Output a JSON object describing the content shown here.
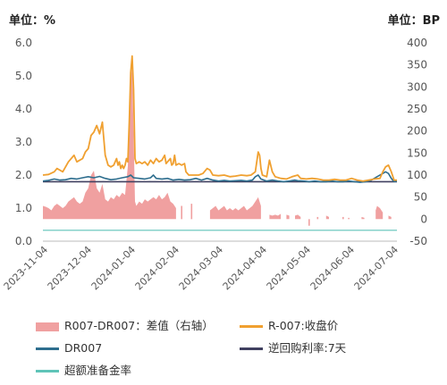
{
  "chart_data": {
    "type": "line",
    "left_unit": "单位：%",
    "right_unit": "单位：BP",
    "y_left": {
      "min": 0,
      "max": 6,
      "ticks": [
        "0.0",
        "1.0",
        "2.0",
        "3.0",
        "4.0",
        "5.0",
        "6.0"
      ]
    },
    "y_right": {
      "min": -50,
      "max": 400,
      "ticks": [
        "-50",
        "0",
        "50",
        "100",
        "150",
        "200",
        "250",
        "300",
        "350",
        "400"
      ]
    },
    "x_ticks": [
      "2023-11-04",
      "2023-12-04",
      "2024-01-04",
      "2024-02-04",
      "2024-03-04",
      "2024-04-04",
      "2024-05-04",
      "2024-06-04",
      "2024-07-04"
    ],
    "colors": {
      "spread": "#f0a0a0",
      "r007": "#f0a030",
      "dr007": "#2e6e8e",
      "repo": "#404060",
      "rrr": "#5fc4b8"
    },
    "legend": [
      {
        "key": "spread",
        "label": "R007-DR007：差值（右轴）",
        "kind": "box"
      },
      {
        "key": "r007",
        "label": "R-007:收盘价",
        "kind": "line"
      },
      {
        "key": "dr007",
        "label": "DR007",
        "kind": "line"
      },
      {
        "key": "repo",
        "label": "逆回购利率:7天",
        "kind": "line"
      },
      {
        "key": "rrr",
        "label": "超额准备金率",
        "kind": "line"
      }
    ],
    "series": {
      "r007": [
        [
          0,
          2.0
        ],
        [
          4,
          2.02
        ],
        [
          8,
          2.1
        ],
        [
          10,
          2.2
        ],
        [
          14,
          2.1
        ],
        [
          18,
          2.4
        ],
        [
          22,
          2.6
        ],
        [
          24,
          2.4
        ],
        [
          28,
          2.5
        ],
        [
          30,
          2.7
        ],
        [
          32,
          2.8
        ],
        [
          34,
          3.2
        ],
        [
          36,
          3.3
        ],
        [
          38,
          3.5
        ],
        [
          40,
          3.25
        ],
        [
          42,
          3.6
        ],
        [
          44,
          2.6
        ],
        [
          46,
          2.3
        ],
        [
          48,
          2.25
        ],
        [
          50,
          2.3
        ],
        [
          52,
          2.5
        ],
        [
          53,
          2.3
        ],
        [
          54,
          2.4
        ],
        [
          55,
          2.2
        ],
        [
          56,
          2.3
        ],
        [
          57,
          2.2
        ],
        [
          58,
          2.3
        ],
        [
          59,
          2.5
        ],
        [
          60,
          2.4
        ],
        [
          61,
          3.6
        ],
        [
          62,
          5.1
        ],
        [
          63,
          5.6
        ],
        [
          64,
          4.6
        ],
        [
          65,
          2.5
        ],
        [
          66,
          2.35
        ],
        [
          68,
          2.4
        ],
        [
          70,
          2.35
        ],
        [
          72,
          2.4
        ],
        [
          74,
          2.3
        ],
        [
          76,
          2.45
        ],
        [
          78,
          2.35
        ],
        [
          80,
          2.5
        ],
        [
          82,
          2.4
        ],
        [
          84,
          2.45
        ],
        [
          86,
          2.6
        ],
        [
          87,
          2.35
        ],
        [
          88,
          2.4
        ],
        [
          90,
          2.5
        ],
        [
          91,
          2.3
        ],
        [
          92,
          2.35
        ],
        [
          93,
          2.6
        ],
        [
          94,
          2.3
        ],
        [
          96,
          2.35
        ],
        [
          98,
          2.3
        ],
        [
          100,
          2.35
        ],
        [
          101,
          2.1
        ],
        [
          103,
          2.0
        ],
        [
          107,
          2.0
        ],
        [
          110,
          2.0
        ],
        [
          113,
          2.05
        ],
        [
          116,
          2.2
        ],
        [
          118,
          2.15
        ],
        [
          120,
          2.0
        ],
        [
          124,
          1.98
        ],
        [
          128,
          2.0
        ],
        [
          132,
          1.95
        ],
        [
          136,
          1.97
        ],
        [
          140,
          2.0
        ],
        [
          144,
          1.98
        ],
        [
          147,
          2.0
        ],
        [
          150,
          2.1
        ],
        [
          152,
          2.7
        ],
        [
          153,
          2.6
        ],
        [
          154,
          2.2
        ],
        [
          155,
          2.0
        ],
        [
          158,
          1.95
        ],
        [
          160,
          2.45
        ],
        [
          162,
          2.1
        ],
        [
          164,
          1.95
        ],
        [
          168,
          1.9
        ],
        [
          172,
          1.88
        ],
        [
          176,
          1.95
        ],
        [
          180,
          2.0
        ],
        [
          182,
          1.9
        ],
        [
          186,
          1.88
        ],
        [
          190,
          1.9
        ],
        [
          194,
          1.88
        ],
        [
          198,
          1.85
        ],
        [
          202,
          1.85
        ],
        [
          206,
          1.87
        ],
        [
          210,
          1.85
        ],
        [
          214,
          1.85
        ],
        [
          218,
          1.9
        ],
        [
          222,
          1.85
        ],
        [
          226,
          1.82
        ],
        [
          230,
          1.85
        ],
        [
          234,
          1.88
        ],
        [
          238,
          1.9
        ],
        [
          240,
          2.1
        ],
        [
          242,
          2.25
        ],
        [
          244,
          2.3
        ],
        [
          246,
          2.1
        ],
        [
          248,
          1.85
        ],
        [
          250,
          1.85
        ]
      ],
      "dr007": [
        [
          0,
          1.82
        ],
        [
          4,
          1.84
        ],
        [
          8,
          1.88
        ],
        [
          12,
          1.85
        ],
        [
          16,
          1.86
        ],
        [
          20,
          1.9
        ],
        [
          24,
          1.88
        ],
        [
          28,
          1.92
        ],
        [
          32,
          1.95
        ],
        [
          36,
          1.92
        ],
        [
          40,
          1.96
        ],
        [
          44,
          1.9
        ],
        [
          48,
          1.86
        ],
        [
          52,
          1.88
        ],
        [
          56,
          1.92
        ],
        [
          60,
          1.95
        ],
        [
          62,
          2.0
        ],
        [
          64,
          1.92
        ],
        [
          68,
          1.9
        ],
        [
          72,
          1.88
        ],
        [
          76,
          1.92
        ],
        [
          78,
          2.0
        ],
        [
          80,
          1.9
        ],
        [
          84,
          1.88
        ],
        [
          88,
          1.9
        ],
        [
          92,
          1.85
        ],
        [
          96,
          1.87
        ],
        [
          100,
          1.85
        ],
        [
          104,
          1.86
        ],
        [
          108,
          1.9
        ],
        [
          112,
          1.85
        ],
        [
          116,
          1.9
        ],
        [
          120,
          1.85
        ],
        [
          124,
          1.82
        ],
        [
          128,
          1.84
        ],
        [
          132,
          1.82
        ],
        [
          136,
          1.83
        ],
        [
          140,
          1.84
        ],
        [
          144,
          1.82
        ],
        [
          148,
          1.85
        ],
        [
          150,
          1.95
        ],
        [
          152,
          2.0
        ],
        [
          154,
          1.88
        ],
        [
          158,
          1.82
        ],
        [
          162,
          1.85
        ],
        [
          166,
          1.82
        ],
        [
          170,
          1.8
        ],
        [
          174,
          1.82
        ],
        [
          178,
          1.85
        ],
        [
          180,
          1.83
        ],
        [
          184,
          1.82
        ],
        [
          188,
          1.8
        ],
        [
          192,
          1.82
        ],
        [
          196,
          1.8
        ],
        [
          200,
          1.8
        ],
        [
          204,
          1.82
        ],
        [
          208,
          1.8
        ],
        [
          212,
          1.8
        ],
        [
          216,
          1.82
        ],
        [
          220,
          1.8
        ],
        [
          224,
          1.78
        ],
        [
          228,
          1.8
        ],
        [
          232,
          1.85
        ],
        [
          236,
          1.95
        ],
        [
          240,
          2.05
        ],
        [
          242,
          2.1
        ],
        [
          244,
          2.05
        ],
        [
          246,
          1.9
        ],
        [
          248,
          1.8
        ],
        [
          250,
          1.82
        ]
      ],
      "repo": [
        [
          0,
          1.8
        ],
        [
          250,
          1.8
        ]
      ],
      "rrr": [
        [
          0,
          0.33
        ],
        [
          250,
          0.33
        ]
      ],
      "spread": [
        [
          0,
          30
        ],
        [
          2,
          28
        ],
        [
          4,
          25
        ],
        [
          6,
          20
        ],
        [
          8,
          30
        ],
        [
          10,
          35
        ],
        [
          12,
          30
        ],
        [
          14,
          25
        ],
        [
          16,
          30
        ],
        [
          18,
          40
        ],
        [
          20,
          45
        ],
        [
          22,
          50
        ],
        [
          24,
          40
        ],
        [
          26,
          35
        ],
        [
          28,
          40
        ],
        [
          30,
          60
        ],
        [
          32,
          70
        ],
        [
          34,
          100
        ],
        [
          36,
          110
        ],
        [
          38,
          70
        ],
        [
          40,
          60
        ],
        [
          42,
          80
        ],
        [
          44,
          45
        ],
        [
          46,
          40
        ],
        [
          48,
          50
        ],
        [
          50,
          45
        ],
        [
          52,
          55
        ],
        [
          54,
          50
        ],
        [
          56,
          60
        ],
        [
          58,
          55
        ],
        [
          60,
          120
        ],
        [
          61,
          240
        ],
        [
          62,
          310
        ],
        [
          63,
          350
        ],
        [
          64,
          200
        ],
        [
          65,
          40
        ],
        [
          66,
          30
        ],
        [
          68,
          40
        ],
        [
          70,
          35
        ],
        [
          72,
          45
        ],
        [
          74,
          40
        ],
        [
          76,
          45
        ],
        [
          78,
          50
        ],
        [
          80,
          45
        ],
        [
          82,
          55
        ],
        [
          84,
          45
        ],
        [
          86,
          50
        ],
        [
          88,
          60
        ],
        [
          90,
          40
        ],
        [
          92,
          35
        ],
        [
          94,
          25
        ],
        [
          95,
          null
        ],
        [
          98,
          30
        ],
        [
          99,
          null
        ],
        [
          104,
          null
        ],
        [
          105,
          35
        ],
        [
          106,
          null
        ],
        [
          118,
          20
        ],
        [
          120,
          25
        ],
        [
          122,
          30
        ],
        [
          124,
          20
        ],
        [
          126,
          25
        ],
        [
          128,
          30
        ],
        [
          130,
          20
        ],
        [
          132,
          25
        ],
        [
          134,
          20
        ],
        [
          136,
          25
        ],
        [
          138,
          20
        ],
        [
          140,
          25
        ],
        [
          142,
          30
        ],
        [
          144,
          20
        ],
        [
          146,
          25
        ],
        [
          148,
          30
        ],
        [
          150,
          40
        ],
        [
          152,
          50
        ],
        [
          154,
          30
        ],
        [
          155,
          null
        ],
        [
          160,
          10
        ],
        [
          162,
          8
        ],
        [
          164,
          10
        ],
        [
          166,
          8
        ],
        [
          168,
          12
        ],
        [
          170,
          null
        ],
        [
          172,
          10
        ],
        [
          174,
          8
        ],
        [
          175,
          null
        ],
        [
          178,
          8
        ],
        [
          180,
          10
        ],
        [
          182,
          5
        ],
        [
          183,
          null
        ],
        [
          188,
          -15
        ],
        [
          189,
          null
        ],
        [
          194,
          5
        ],
        [
          195,
          null
        ],
        [
          200,
          8
        ],
        [
          202,
          5
        ],
        [
          203,
          null
        ],
        [
          212,
          5
        ],
        [
          213,
          null
        ],
        [
          216,
          3
        ],
        [
          217,
          null
        ],
        [
          225,
          5
        ],
        [
          227,
          3
        ],
        [
          228,
          null
        ],
        [
          235,
          20
        ],
        [
          236,
          30
        ],
        [
          238,
          25
        ],
        [
          240,
          15
        ],
        [
          241,
          null
        ],
        [
          244,
          8
        ],
        [
          246,
          5
        ]
      ]
    },
    "x_max": 250
  }
}
